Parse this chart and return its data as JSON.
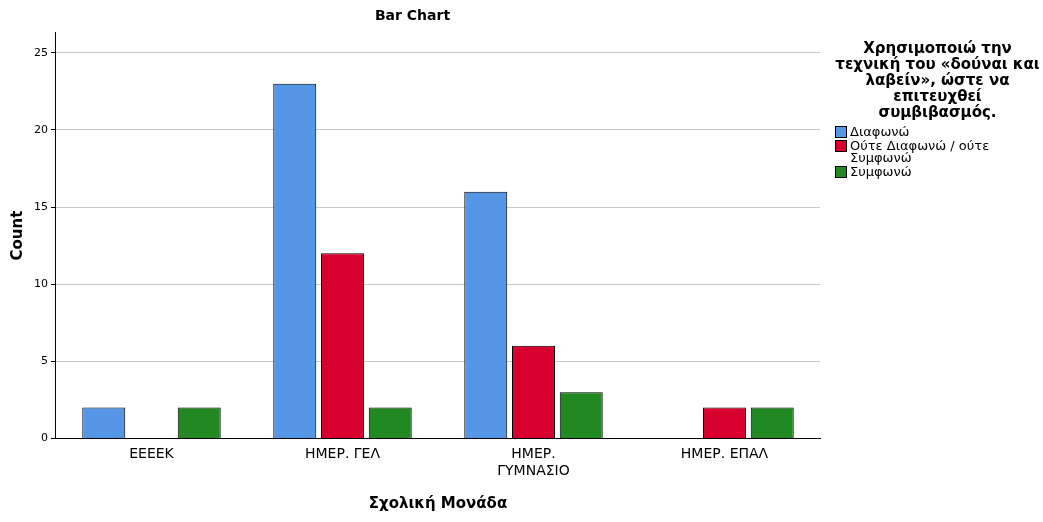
{
  "chart_data": {
    "type": "bar",
    "title": "Bar Chart",
    "xlabel": "Σχολική Μονάδα",
    "ylabel": "Count",
    "legend_title": "Χρησιμοποιώ την τεχνική του «δούναι και λαβείν», ώστε να επιτευχθεί συμβιβασμός.",
    "categories": [
      "ΕΕΕΕΚ",
      "ΗΜΕΡ. ΓΕΛ",
      "ΗΜΕΡ. ΓΥΜΝΑΣΙΟ",
      "ΗΜΕΡ. ΕΠΑΛ"
    ],
    "series": [
      {
        "name": "Διαφωνώ",
        "color": "#5596e6",
        "values": [
          2,
          23,
          16,
          null
        ]
      },
      {
        "name": "Ούτε Διαφωνώ / ούτε Συμφωνώ",
        "color": "#d8002f",
        "values": [
          null,
          12,
          6,
          2
        ]
      },
      {
        "name": "Συμφωνώ",
        "color": "#228822",
        "values": [
          2,
          2,
          3,
          2
        ]
      }
    ],
    "ylim": [
      0,
      26.3
    ],
    "yticks": [
      0,
      5,
      10,
      15,
      20,
      25
    ],
    "grid": "y",
    "legend": "right"
  }
}
